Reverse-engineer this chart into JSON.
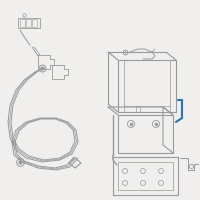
{
  "bg_color": "#f0efed",
  "line_color": "#999999",
  "highlight_color": "#2277bb",
  "lw_main": 0.7,
  "lw_thick": 1.0
}
